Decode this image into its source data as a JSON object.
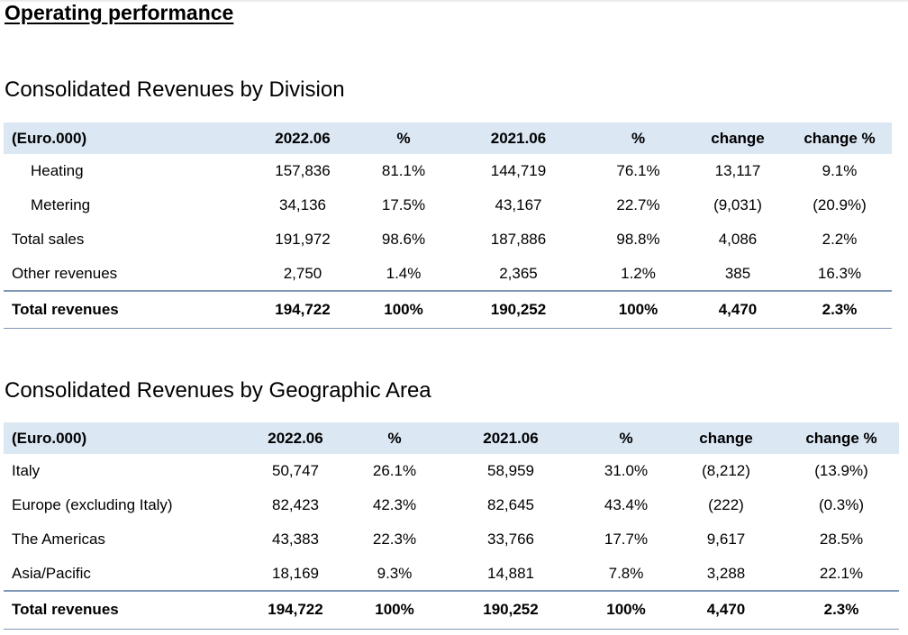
{
  "page_heading": "Operating performance",
  "division_table": {
    "title": "Consolidated Revenues by Division",
    "header": [
      "(Euro.000)",
      "2022.06",
      "%",
      "2021.06",
      "%",
      "change",
      "change %"
    ],
    "rows": [
      {
        "label": "Heating",
        "indent": true,
        "values": [
          "157,836",
          "81.1%",
          "144,719",
          "76.1%",
          "13,117",
          "9.1%"
        ]
      },
      {
        "label": "Metering",
        "indent": true,
        "values": [
          "34,136",
          "17.5%",
          "43,167",
          "22.7%",
          "(9,031)",
          "(20.9%)"
        ]
      },
      {
        "label": "Total sales",
        "indent": false,
        "values": [
          "191,972",
          "98.6%",
          "187,886",
          "98.8%",
          "4,086",
          "2.2%"
        ]
      },
      {
        "label": "Other revenues",
        "indent": false,
        "values": [
          "2,750",
          "1.4%",
          "2,365",
          "1.2%",
          "385",
          "16.3%"
        ]
      }
    ],
    "total": {
      "label": "Total revenues",
      "values": [
        "194,722",
        "100%",
        "190,252",
        "100%",
        "4,470",
        "2.3%"
      ]
    }
  },
  "geo_table": {
    "title": "Consolidated Revenues by Geographic Area",
    "header": [
      "(Euro.000)",
      "2022.06",
      "%",
      "2021.06",
      "%",
      "change",
      "change %"
    ],
    "rows": [
      {
        "label": "Italy",
        "values": [
          "50,747",
          "26.1%",
          "58,959",
          "31.0%",
          "(8,212)",
          "(13.9%)"
        ]
      },
      {
        "label": "Europe (excluding Italy)",
        "values": [
          "82,423",
          "42.3%",
          "82,645",
          "43.4%",
          "(222)",
          "(0.3%)"
        ]
      },
      {
        "label": "The Americas",
        "values": [
          "43,383",
          "22.3%",
          "33,766",
          "17.7%",
          "9,617",
          "28.5%"
        ]
      },
      {
        "label": "Asia/Pacific",
        "values": [
          "18,169",
          "9.3%",
          "14,881",
          "7.8%",
          "3,288",
          "22.1%"
        ]
      }
    ],
    "total": {
      "label": "Total revenues",
      "values": [
        "194,722",
        "100%",
        "190,252",
        "100%",
        "4,470",
        "2.3%"
      ]
    }
  }
}
